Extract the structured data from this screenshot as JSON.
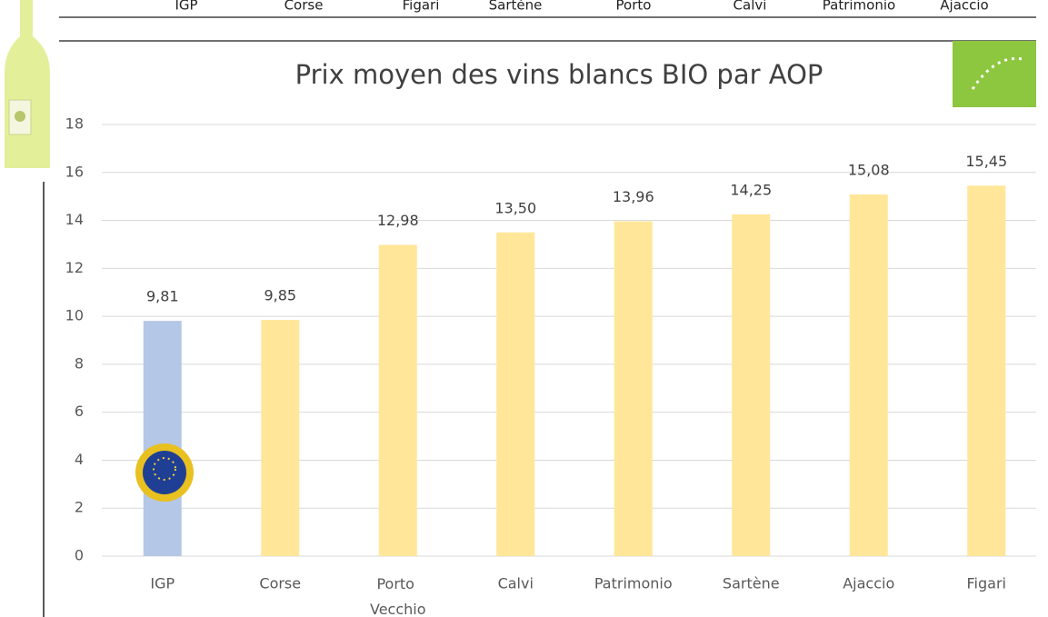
{
  "previous_chart_labels": [
    "IGP",
    "Corse",
    "Figari",
    "Sartène",
    "Porto",
    "Calvi",
    "Patrimonio",
    "Ajaccio"
  ],
  "chart_data": {
    "type": "bar",
    "title": "Prix moyen des vins blancs BIO par AOP",
    "categories": [
      "IGP",
      "Corse",
      "Porto Vecchio",
      "Calvi",
      "Patrimonio",
      "Sartène",
      "Ajaccio",
      "Figari"
    ],
    "values": [
      9.81,
      9.85,
      12.98,
      13.5,
      13.96,
      14.25,
      15.08,
      15.45
    ],
    "value_labels": [
      "9,81",
      "9,85",
      "12,98",
      "13,50",
      "13,96",
      "14,25",
      "15,08",
      "15,45"
    ],
    "colors": [
      "#b4c7e7",
      "#ffe699",
      "#ffe699",
      "#ffe699",
      "#ffe699",
      "#ffe699",
      "#ffe699",
      "#ffe699"
    ],
    "ylim": [
      0,
      18
    ],
    "yticks": [
      0,
      2,
      4,
      6,
      8,
      10,
      12,
      14,
      16,
      18
    ],
    "grid": true
  }
}
